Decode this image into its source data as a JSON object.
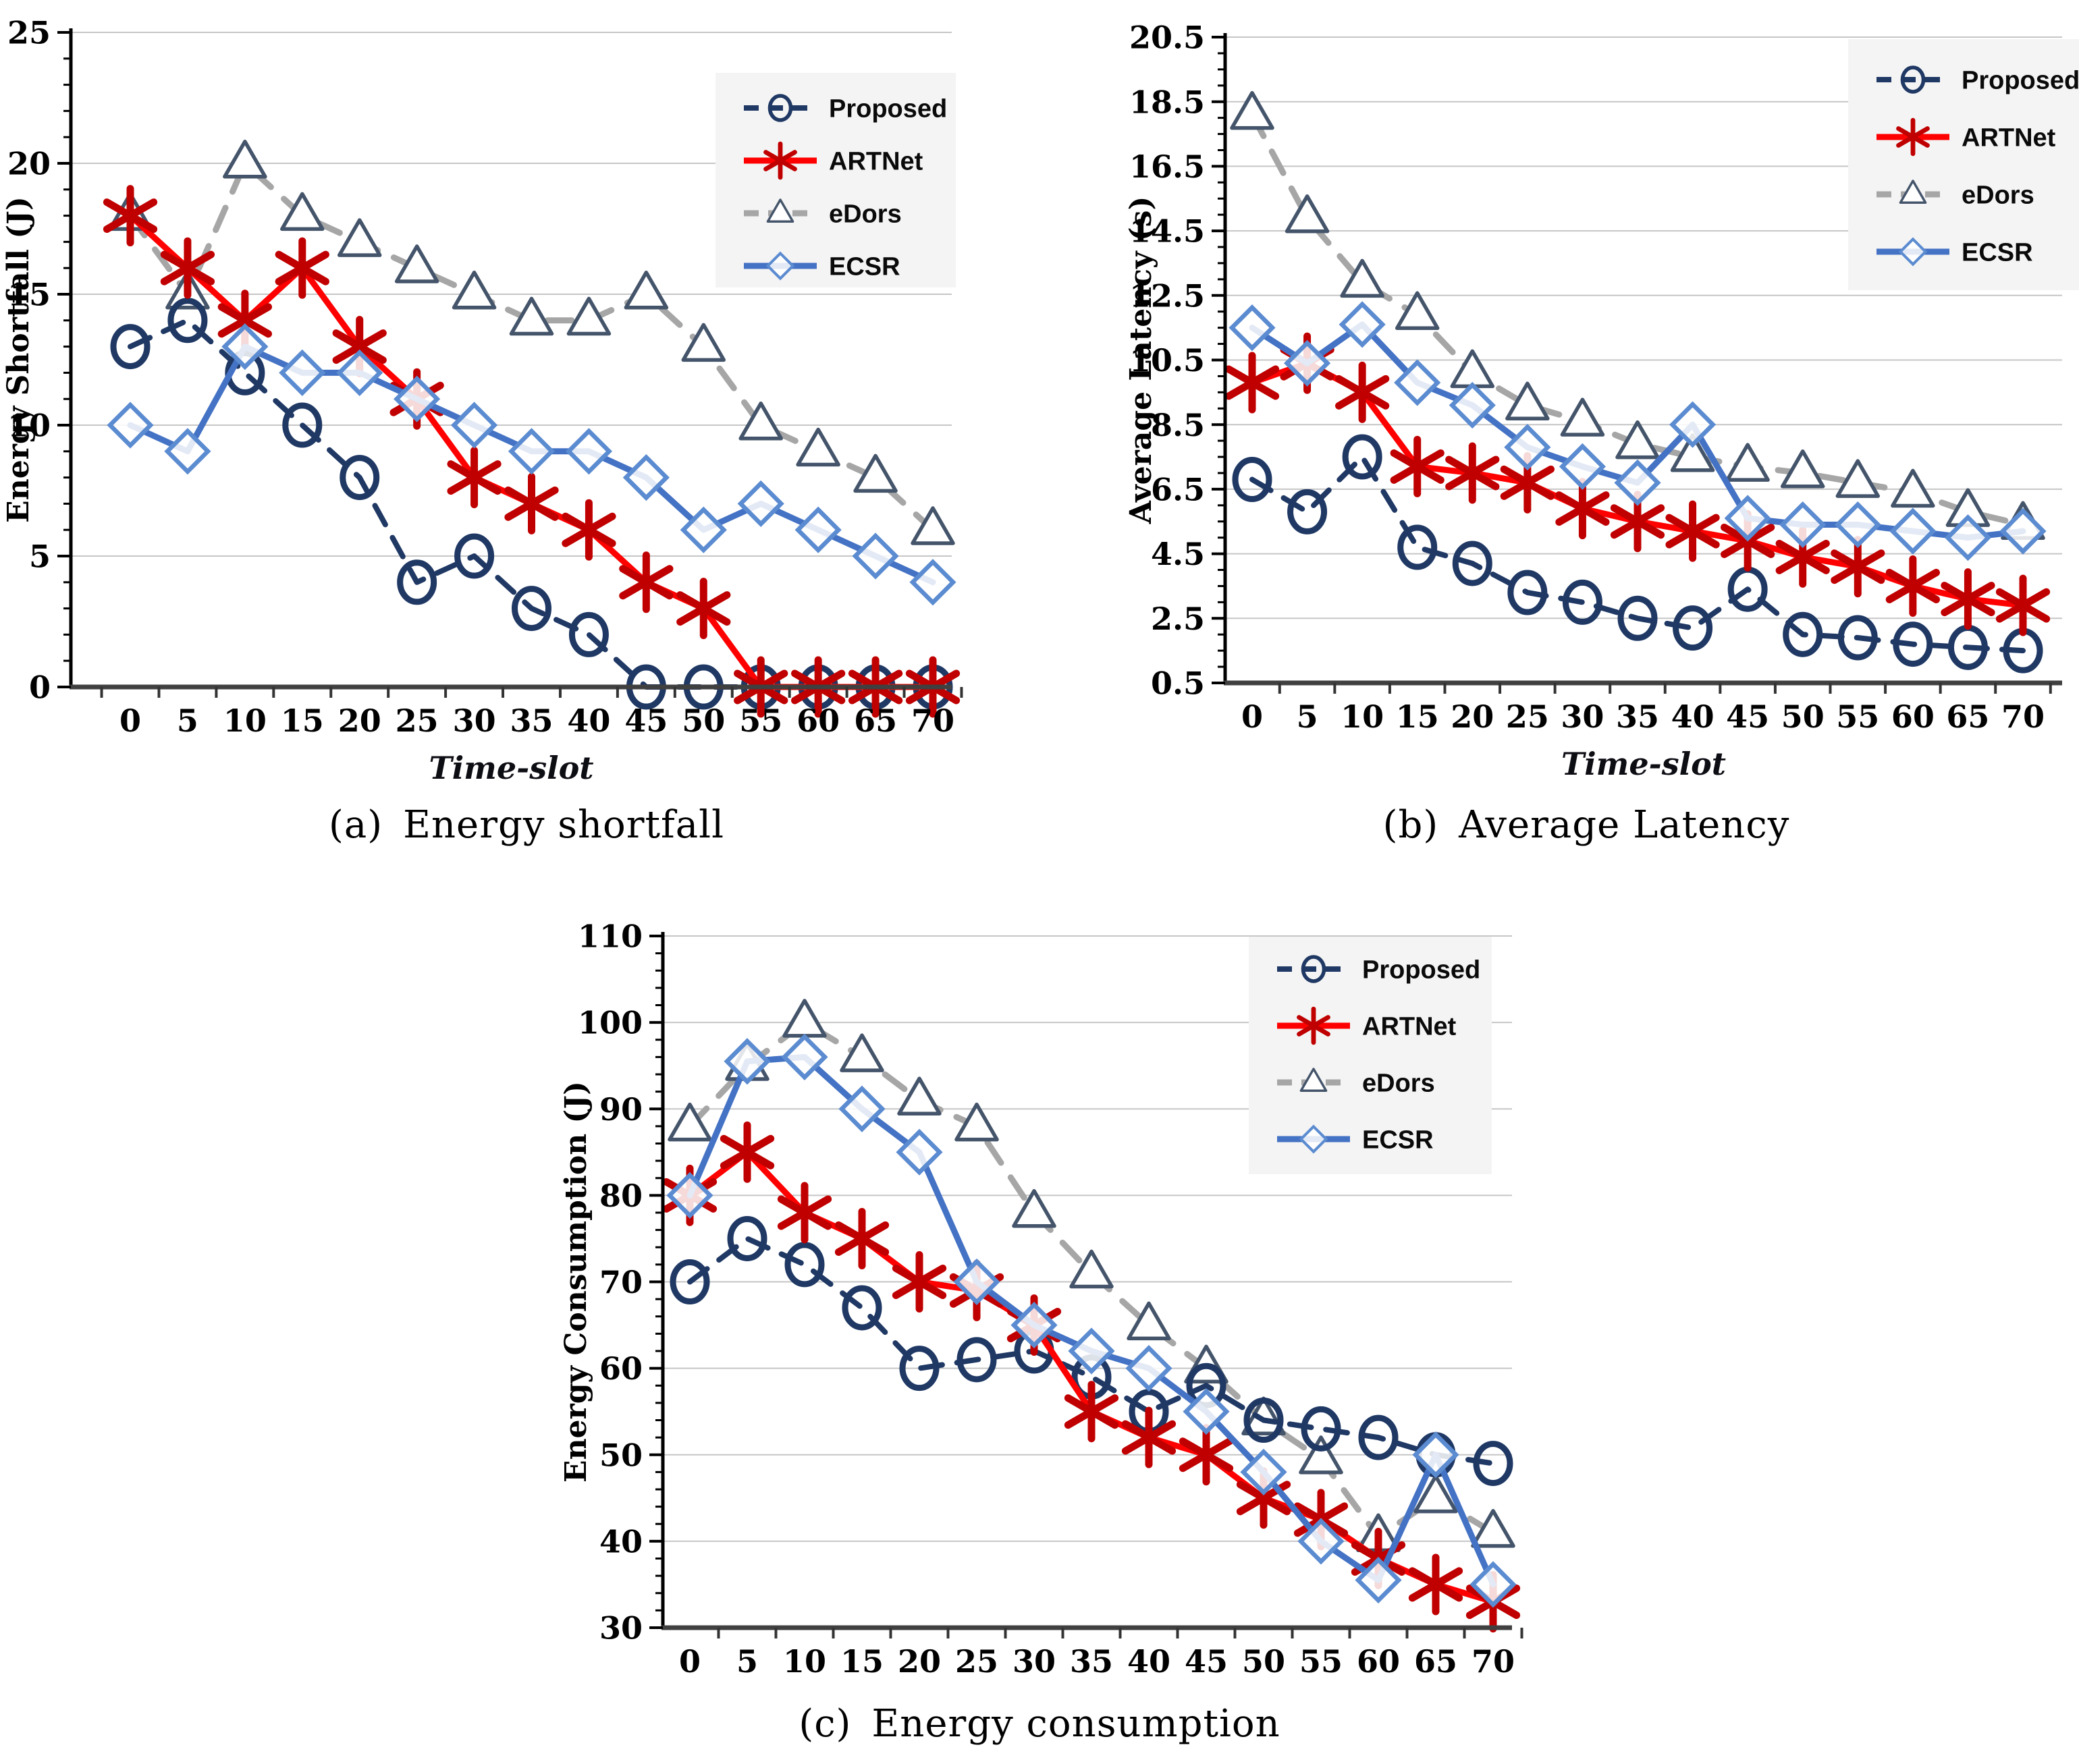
{
  "figure": {
    "captions": [
      {
        "prefix": "(a)",
        "text": "Energy shortfall"
      },
      {
        "prefix": "(b)",
        "text": "Average Latency"
      },
      {
        "prefix": "(c)",
        "text": "Energy consumption"
      }
    ]
  },
  "colors": {
    "proposed_navy": "#1F3864",
    "artnet_line_red": "#FF0000",
    "artnet_marker_dark_red": "#C00000",
    "edors_line_gray": "#A6A6A6",
    "edors_marker_slate": "#44546A",
    "ecsr_line_blue": "#4472C4",
    "ecsr_marker_blue": "#5B8BD0",
    "gridline_gray": "#C6C6C6",
    "axis_dark": "#404040",
    "legend_background": "#F4F4F4"
  },
  "chart_data": [
    {
      "type": "line",
      "title": "(a) Energy shortfall",
      "xlabel": "Time-slot",
      "ylabel": "Energy Shortfall (J)",
      "ylim": [
        0,
        25
      ],
      "yticks": [
        0,
        5,
        10,
        15,
        20,
        25
      ],
      "x": [
        0,
        5,
        10,
        15,
        20,
        25,
        30,
        35,
        40,
        45,
        50,
        55,
        60,
        65,
        70
      ],
      "grid": "horizontal",
      "legend_position": "top-right",
      "series": [
        {
          "name": "Proposed",
          "marker": "circle",
          "dash": "dashed",
          "values": [
            13,
            14,
            12,
            10,
            8,
            4,
            5,
            3,
            2,
            0,
            0,
            0,
            0,
            0,
            0
          ]
        },
        {
          "name": "ARTNet",
          "marker": "asterisk",
          "dash": "solid",
          "values": [
            18,
            16,
            14,
            16,
            13,
            11,
            8,
            7,
            6,
            4,
            3,
            0,
            0,
            0,
            0
          ]
        },
        {
          "name": "eDors",
          "marker": "triangle",
          "dash": "dashed",
          "values": [
            18,
            15,
            20,
            18,
            17,
            16,
            15,
            14,
            14,
            15,
            13,
            10,
            9,
            8,
            6
          ]
        },
        {
          "name": "ECSR",
          "marker": "diamond",
          "dash": "solid",
          "values": [
            10,
            9,
            13,
            12,
            12,
            11,
            10,
            9,
            9,
            8,
            6,
            7,
            6,
            5,
            4
          ]
        }
      ]
    },
    {
      "type": "line",
      "title": "(b) Average Latency",
      "xlabel": "Time-slot",
      "ylabel": "Average Latency (s)",
      "ylim": [
        0.5,
        20.5
      ],
      "yticks": [
        0.5,
        2.5,
        4.5,
        6.5,
        8.5,
        10.5,
        12.5,
        14.5,
        16.5,
        18.5,
        20.5
      ],
      "x": [
        0,
        5,
        10,
        15,
        20,
        25,
        30,
        35,
        40,
        45,
        50,
        55,
        60,
        65,
        70
      ],
      "grid": "horizontal",
      "legend_position": "top-right",
      "series": [
        {
          "name": "Proposed",
          "marker": "circle",
          "dash": "dashed",
          "values": [
            6.8,
            5.8,
            7.5,
            4.7,
            4.2,
            3.3,
            3.0,
            2.5,
            2.2,
            3.4,
            2.0,
            1.9,
            1.7,
            1.6,
            1.5
          ]
        },
        {
          "name": "ARTNet",
          "marker": "asterisk",
          "dash": "solid",
          "values": [
            9.8,
            10.4,
            9.5,
            7.2,
            7.0,
            6.7,
            5.9,
            5.5,
            5.2,
            4.9,
            4.4,
            4.1,
            3.5,
            3.1,
            2.9
          ]
        },
        {
          "name": "eDors",
          "marker": "triangle",
          "dash": "dashed",
          "values": [
            18.1,
            14.9,
            12.9,
            11.9,
            10.1,
            9.1,
            8.6,
            7.9,
            7.5,
            7.2,
            7.0,
            6.7,
            6.4,
            5.8,
            5.4
          ]
        },
        {
          "name": "ECSR",
          "marker": "diamond",
          "dash": "solid",
          "values": [
            11.5,
            10.4,
            11.6,
            9.8,
            9.1,
            7.8,
            7.2,
            6.7,
            8.5,
            5.6,
            5.4,
            5.4,
            5.2,
            5.0,
            5.2
          ]
        }
      ]
    },
    {
      "type": "line",
      "title": "(c) Energy consumption",
      "xlabel": "Time-slot",
      "ylabel": "Energy Consumption (J)",
      "ylim": [
        30,
        110
      ],
      "yticks": [
        30,
        40,
        50,
        60,
        70,
        80,
        90,
        100,
        110
      ],
      "x": [
        0,
        5,
        10,
        15,
        20,
        25,
        30,
        35,
        40,
        45,
        50,
        55,
        60,
        65,
        70
      ],
      "grid": "horizontal",
      "legend_position": "top-right",
      "series": [
        {
          "name": "Proposed",
          "marker": "circle",
          "dash": "dashed",
          "values": [
            70,
            75,
            72,
            67,
            60,
            61,
            62,
            59,
            55,
            58,
            54,
            53,
            52,
            50,
            49
          ]
        },
        {
          "name": "ARTNet",
          "marker": "asterisk",
          "dash": "solid",
          "values": [
            80,
            85,
            78,
            75,
            70,
            69,
            65,
            55,
            52,
            50,
            45,
            42.5,
            38,
            35,
            33
          ]
        },
        {
          "name": "eDors",
          "marker": "triangle",
          "dash": "dashed",
          "values": [
            88,
            95,
            100,
            96,
            91,
            88,
            78,
            71,
            65,
            60,
            54,
            49.5,
            40.5,
            45,
            41
          ]
        },
        {
          "name": "ECSR",
          "marker": "diamond",
          "dash": "solid",
          "values": [
            80,
            95.5,
            96,
            90,
            85,
            70,
            65,
            62,
            60,
            55,
            48,
            40,
            35.5,
            50,
            35
          ]
        }
      ]
    }
  ]
}
